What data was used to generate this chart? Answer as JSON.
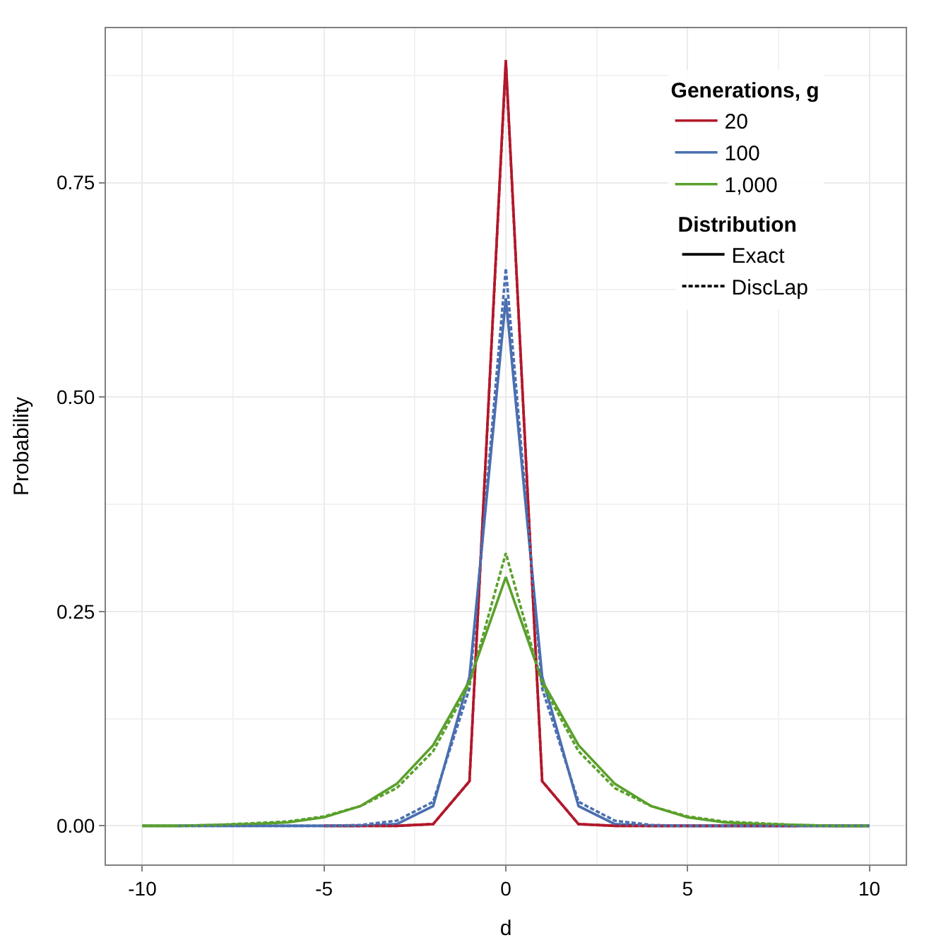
{
  "chart_data": {
    "type": "line",
    "xlabel": "d",
    "ylabel": "Probability",
    "legend_title": "Generations, g",
    "x": [
      -10,
      -9,
      -8,
      -7,
      -6,
      -5,
      -4,
      -3,
      -2,
      -1,
      0,
      1,
      2,
      3,
      4,
      5,
      6,
      7,
      8,
      9,
      10
    ],
    "series": [
      {
        "name": "20",
        "color": "#b2182b",
        "line_style": "solid",
        "values": [
          null,
          null,
          null,
          null,
          null,
          0,
          0,
          0,
          0.002,
          0.052,
          0.893,
          0.052,
          0.002,
          0,
          0,
          0,
          0,
          0,
          0,
          0,
          0
        ]
      },
      {
        "name": "100",
        "color": "#4a6fb0",
        "line_style": "solid",
        "values": [
          0,
          0,
          0,
          0,
          0,
          0,
          0,
          0.002,
          0.023,
          0.174,
          0.615,
          0.174,
          0.023,
          0.002,
          0,
          0,
          0,
          0,
          0,
          0,
          0
        ]
      },
      {
        "name": "1,000",
        "color": "#5aa02c",
        "line_style": "solid",
        "values": [
          0,
          0,
          0.001,
          0.002,
          0.004,
          0.01,
          0.023,
          0.049,
          0.094,
          0.169,
          0.29,
          0.169,
          0.094,
          0.049,
          0.023,
          0.01,
          0.004,
          0.002,
          0.001,
          0,
          0
        ]
      },
      {
        "color": "#b2182b",
        "line_style": "dashed",
        "values": [
          null,
          null,
          null,
          null,
          null,
          0,
          0,
          0,
          0.002,
          0.052,
          0.89,
          0.052,
          0.002,
          0,
          0,
          0,
          0,
          0,
          0,
          null,
          null
        ]
      },
      {
        "color": "#4a6fb0",
        "line_style": "dashed",
        "values": [
          null,
          0,
          0,
          0,
          0,
          0,
          0.001,
          0.006,
          0.028,
          0.16,
          0.65,
          0.16,
          0.028,
          0.006,
          0.001,
          0,
          0,
          0,
          0,
          0,
          0
        ]
      },
      {
        "color": "#5aa02c",
        "line_style": "dashed",
        "values": [
          0,
          0,
          0.001,
          0.003,
          0.005,
          0.011,
          0.023,
          0.044,
          0.087,
          0.165,
          0.318,
          0.165,
          0.087,
          0.044,
          0.023,
          0.011,
          0.005,
          0.003,
          0.001,
          0,
          0
        ]
      }
    ],
    "annotations": [
      "Distribution",
      "Exact",
      "DiscLap"
    ],
    "xlim": [
      -11,
      11
    ],
    "xticks": [
      -10,
      -5,
      0,
      5,
      10
    ],
    "ylim": [
      -0.045,
      0.93
    ],
    "yticks": [
      {
        "value": 0,
        "label": "0.00"
      },
      {
        "value": 0.25,
        "label": "0.25"
      },
      {
        "value": 0.5,
        "label": "0.50"
      },
      {
        "value": 0.75,
        "label": "0.75"
      }
    ],
    "grid": true,
    "legend": "top right",
    "marker": "none"
  }
}
